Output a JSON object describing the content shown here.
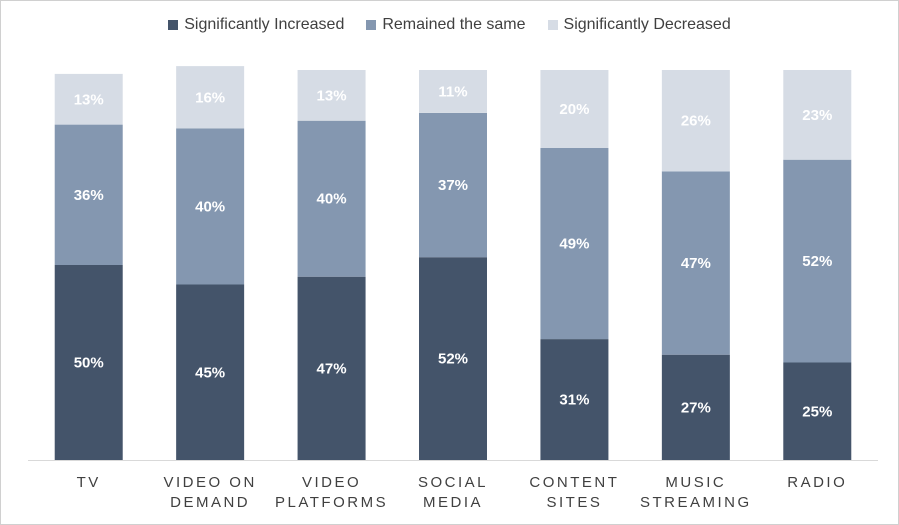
{
  "chart_data": {
    "type": "bar",
    "stacked": true,
    "categories": [
      [
        "TV"
      ],
      [
        "VIDEO ON",
        "DEMAND"
      ],
      [
        "VIDEO",
        "PLATFORMS"
      ],
      [
        "SOCIAL",
        "MEDIA"
      ],
      [
        "CONTENT",
        "SITES"
      ],
      [
        "MUSIC",
        "STREAMING"
      ],
      [
        "RADIO"
      ]
    ],
    "series": [
      {
        "name": "Significantly Increased",
        "color": "#44546a",
        "label_color": "#ffffff",
        "values": [
          50,
          45,
          47,
          52,
          31,
          27,
          25
        ]
      },
      {
        "name": "Remained the same",
        "color": "#8497b0",
        "label_color": "#ffffff",
        "values": [
          36,
          40,
          40,
          37,
          49,
          47,
          52
        ]
      },
      {
        "name": "Significantly Decreased",
        "color": "#d6dce5",
        "label_color": "#ffffff",
        "values": [
          13,
          16,
          13,
          11,
          20,
          26,
          23
        ]
      }
    ],
    "value_suffix": "%",
    "legend_position": "top",
    "grid": false,
    "axis_color": "#d9d9d9"
  }
}
